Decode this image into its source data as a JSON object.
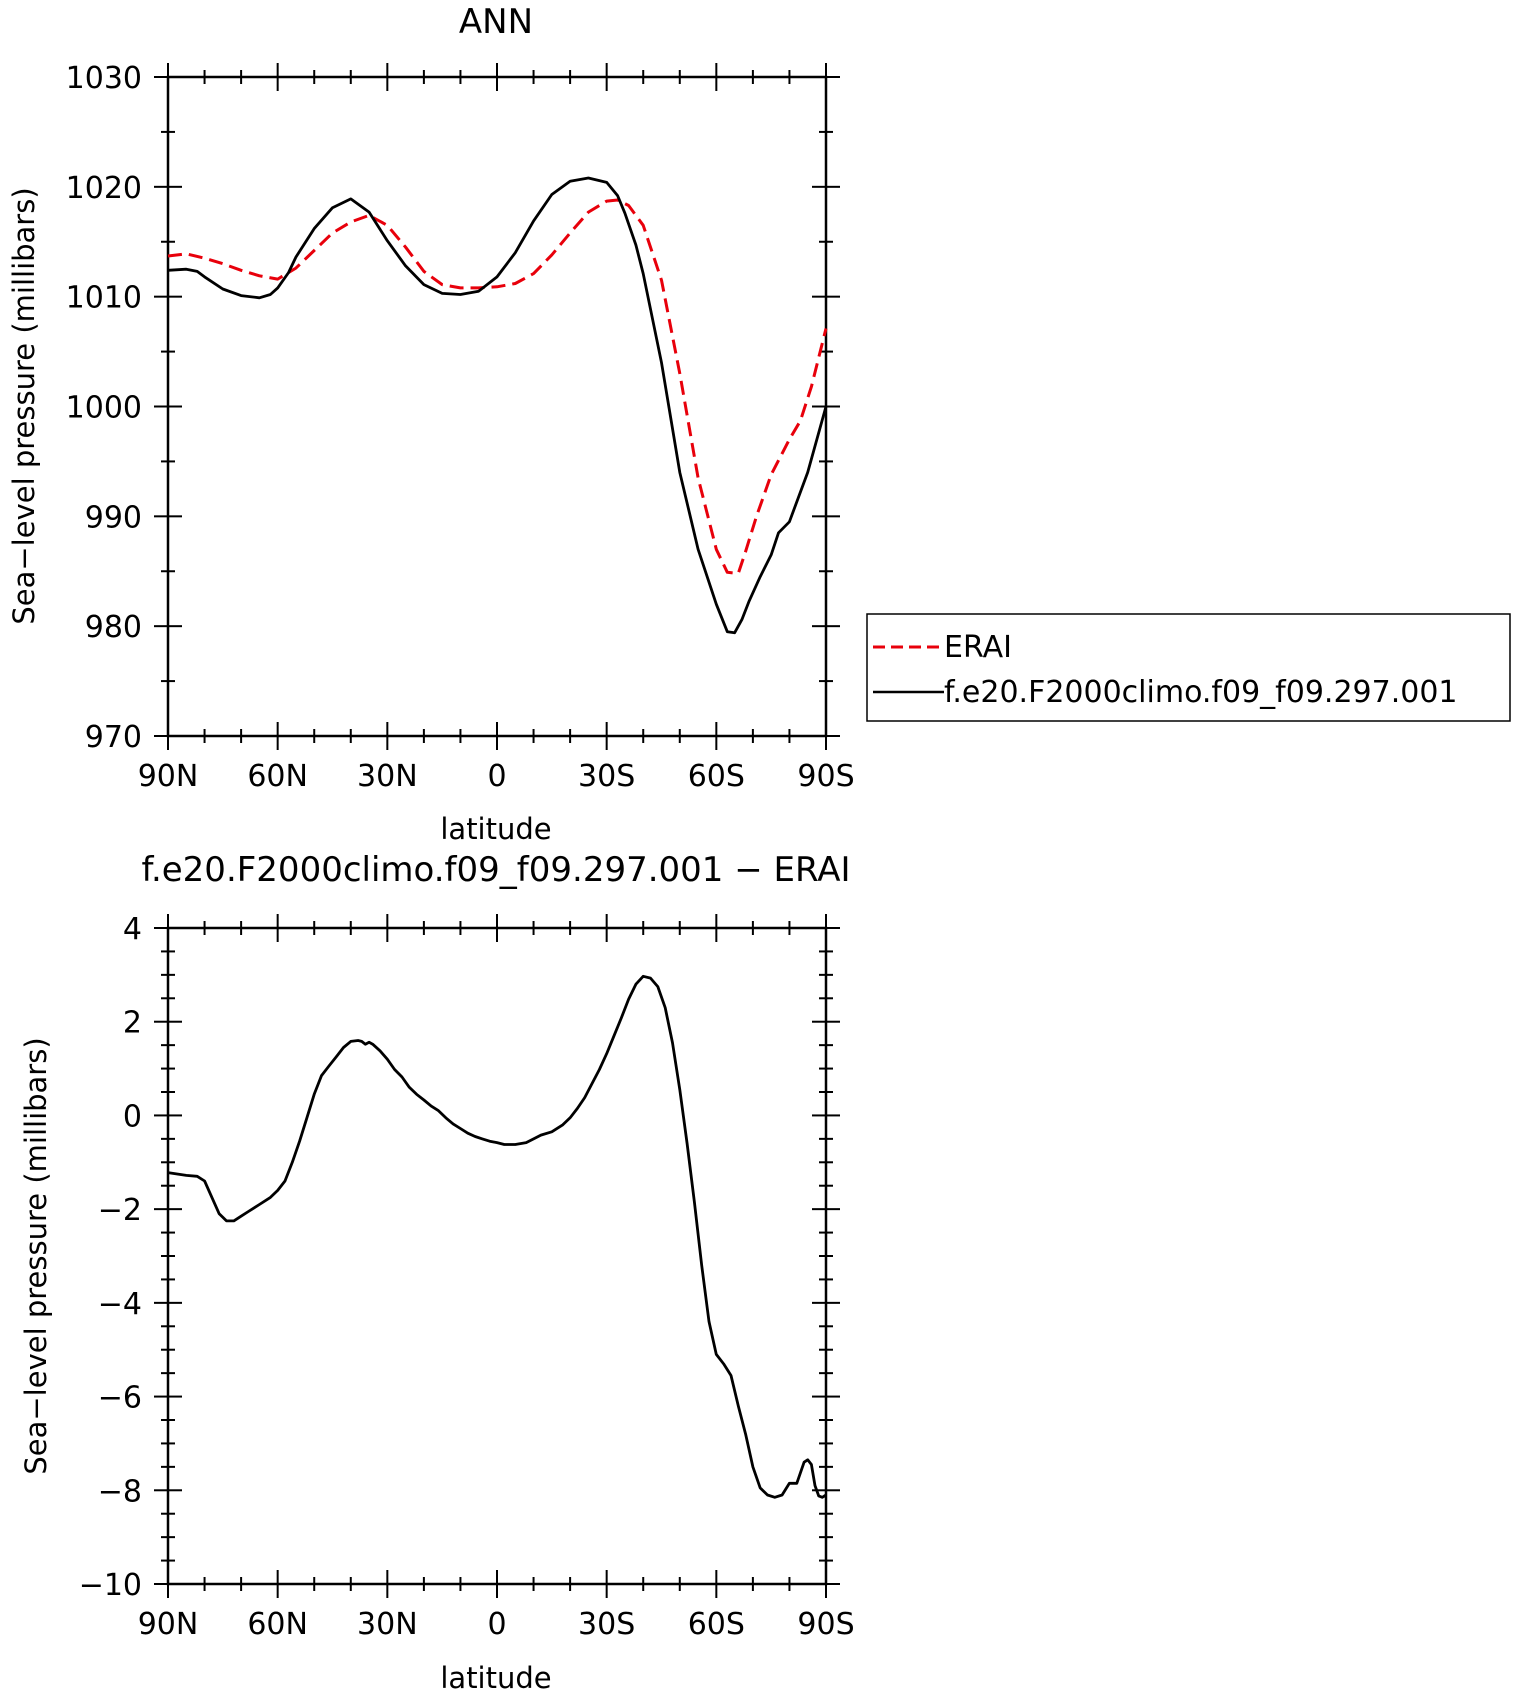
{
  "chart_data": [
    {
      "type": "line",
      "title": "ANN",
      "xlabel": "latitude",
      "ylabel": "Sea−level pressure (millibars)",
      "xlim": [
        90,
        -90
      ],
      "ylim": [
        970,
        1030
      ],
      "x_ticks": [
        "90N",
        "60N",
        "30N",
        "0",
        "30S",
        "60S",
        "90S"
      ],
      "y_ticks": [
        "1030",
        "1020",
        "1010",
        "1000",
        "990",
        "980",
        "970"
      ],
      "legend_position": "right",
      "series": [
        {
          "name": "ERAI",
          "color": "#e8000b",
          "dash": "dashed",
          "x": [
            90,
            85,
            80,
            75,
            70,
            65,
            60,
            55,
            50,
            45,
            40,
            35,
            30,
            25,
            20,
            15,
            10,
            5,
            0,
            -5,
            -10,
            -15,
            -20,
            -25,
            -30,
            -33,
            -36,
            -40,
            -45,
            -50,
            -55,
            -60,
            -63,
            -66,
            -68,
            -71,
            -75,
            -80,
            -83,
            -86,
            -90
          ],
          "y": [
            1013.7,
            1013.9,
            1013.5,
            1013.0,
            1012.4,
            1011.9,
            1011.6,
            1012.6,
            1014.2,
            1015.8,
            1016.8,
            1017.4,
            1016.5,
            1014.5,
            1012.3,
            1011.1,
            1010.8,
            1010.8,
            1010.9,
            1011.2,
            1012.1,
            1013.8,
            1015.8,
            1017.7,
            1018.7,
            1018.8,
            1018.3,
            1016.5,
            1011.5,
            1003.0,
            993.5,
            987.0,
            984.9,
            984.8,
            986.8,
            990.0,
            993.8,
            997.0,
            998.7,
            1001.8,
            1007.1
          ]
        },
        {
          "name": "f.e20.F2000climo.f09_f09.297.001",
          "color": "#000000",
          "dash": "solid",
          "x": [
            90,
            85,
            82,
            80,
            75,
            70,
            65,
            62,
            60,
            57,
            55,
            50,
            45,
            40,
            35,
            30,
            25,
            20,
            15,
            10,
            5,
            0,
            -5,
            -10,
            -15,
            -20,
            -25,
            -30,
            -33,
            -35,
            -38,
            -40,
            -45,
            -50,
            -55,
            -60,
            -63,
            -65,
            -67,
            -69,
            -72,
            -75,
            -77,
            -80,
            -85,
            -90
          ],
          "y": [
            1012.4,
            1012.5,
            1012.3,
            1011.8,
            1010.7,
            1010.1,
            1009.9,
            1010.2,
            1010.8,
            1012.2,
            1013.6,
            1016.2,
            1018.1,
            1018.9,
            1017.7,
            1015.1,
            1012.8,
            1011.1,
            1010.3,
            1010.2,
            1010.5,
            1011.8,
            1014.0,
            1016.9,
            1019.3,
            1020.5,
            1020.8,
            1020.4,
            1019.2,
            1017.6,
            1014.7,
            1012.1,
            1004.0,
            994.0,
            987.0,
            982.0,
            979.5,
            979.4,
            980.6,
            982.3,
            984.5,
            986.5,
            988.5,
            989.5,
            994.0,
            1000.0
          ]
        }
      ]
    },
    {
      "type": "line",
      "title": "f.e20.F2000climo.f09_f09.297.001  −  ERAI",
      "xlabel": "latitude",
      "ylabel": "Sea−level pressure (millibars)",
      "xlim": [
        90,
        -90
      ],
      "ylim": [
        -10,
        4
      ],
      "x_ticks": [
        "90N",
        "60N",
        "30N",
        "0",
        "30S",
        "60S",
        "90S"
      ],
      "y_ticks": [
        "4",
        "2",
        "0",
        "−2",
        "−4",
        "−6",
        "−8",
        "−10"
      ],
      "series": [
        {
          "name": "",
          "color": "#000000",
          "dash": "solid",
          "x": [
            90,
            85,
            82,
            80,
            78,
            76,
            74,
            72,
            70,
            68,
            65,
            62,
            60,
            58,
            56,
            54,
            52,
            50,
            48,
            46,
            44,
            42,
            40,
            38,
            37,
            36,
            35,
            34,
            32,
            30,
            28,
            26,
            24,
            22,
            20,
            18,
            16,
            14,
            12,
            10,
            8,
            6,
            4,
            2,
            0,
            -2,
            -5,
            -8,
            -10,
            -12,
            -15,
            -18,
            -20,
            -22,
            -24,
            -26,
            -28,
            -30,
            -32,
            -34,
            -36,
            -38,
            -40,
            -42,
            -44,
            -46,
            -48,
            -50,
            -52,
            -54,
            -56,
            -58,
            -60,
            -62,
            -64,
            -66,
            -68,
            -70,
            -72,
            -74,
            -76,
            -78,
            -80,
            -82,
            -84,
            -85,
            -86,
            -87,
            -88,
            -89,
            -90
          ],
          "y": [
            -1.22,
            -1.28,
            -1.3,
            -1.4,
            -1.75,
            -2.1,
            -2.25,
            -2.25,
            -2.15,
            -2.05,
            -1.9,
            -1.75,
            -1.6,
            -1.4,
            -1.0,
            -0.55,
            -0.05,
            0.45,
            0.85,
            1.05,
            1.25,
            1.45,
            1.58,
            1.6,
            1.58,
            1.52,
            1.56,
            1.52,
            1.38,
            1.2,
            0.98,
            0.82,
            0.6,
            0.45,
            0.33,
            0.2,
            0.1,
            -0.05,
            -0.18,
            -0.28,
            -0.38,
            -0.45,
            -0.5,
            -0.55,
            -0.58,
            -0.62,
            -0.62,
            -0.58,
            -0.5,
            -0.42,
            -0.35,
            -0.2,
            -0.05,
            0.15,
            0.38,
            0.68,
            0.98,
            1.32,
            1.7,
            2.08,
            2.48,
            2.8,
            2.97,
            2.93,
            2.75,
            2.3,
            1.55,
            0.55,
            -0.6,
            -1.85,
            -3.2,
            -4.4,
            -5.1,
            -5.3,
            -5.55,
            -6.2,
            -6.8,
            -7.5,
            -7.95,
            -8.1,
            -8.15,
            -8.1,
            -7.85,
            -7.85,
            -7.4,
            -7.35,
            -7.45,
            -7.9,
            -8.12,
            -8.15,
            -8.1
          ]
        }
      ]
    }
  ]
}
